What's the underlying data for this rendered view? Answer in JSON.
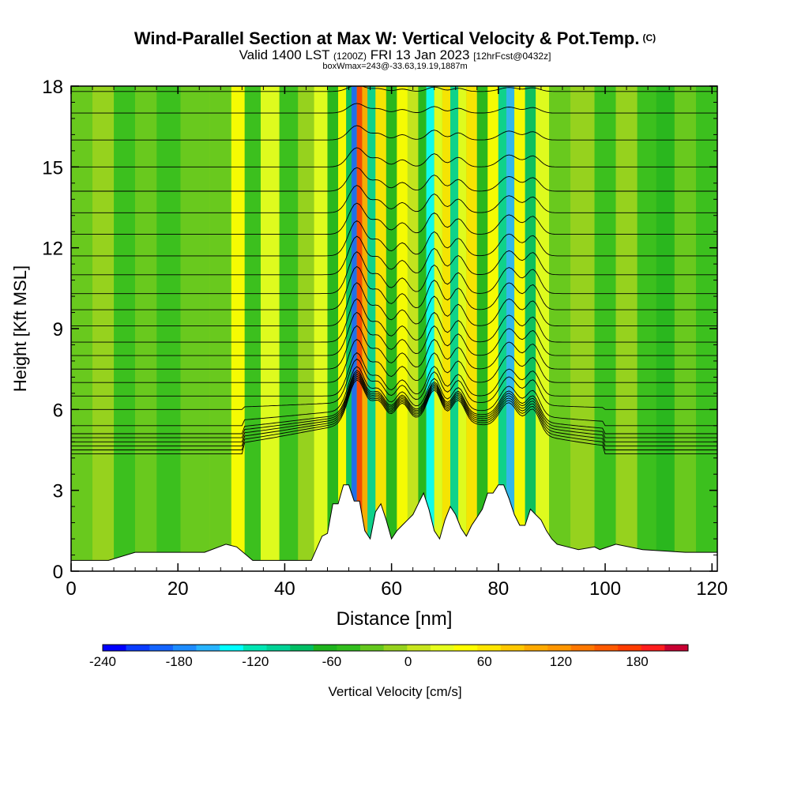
{
  "header": {
    "title": "Wind-Parallel Section at Max W: Vertical Velocity & Pot.Temp.",
    "copyright": "(C)",
    "valid_a": "Valid 1400 LST",
    "valid_b": "(1200Z)",
    "valid_c": "FRI 13 Jan 2023",
    "valid_d": "[12hrFcst@0432z]",
    "box_info": "boxWmax=243@-33.63,19.19,1887m"
  },
  "chart_data": {
    "type": "heatmap",
    "title": "Wind-Parallel Section at Max W: Vertical Velocity & Pot.Temp.",
    "xlabel": "Distance [nm]",
    "ylabel": "Height [Kft MSL]",
    "xlim": [
      0,
      121
    ],
    "ylim": [
      0,
      18
    ],
    "x_ticks": [
      0,
      20,
      40,
      60,
      80,
      100,
      120
    ],
    "y_ticks": [
      0,
      3,
      6,
      9,
      12,
      15,
      18
    ],
    "grid": false,
    "colorbar": {
      "label": "Vertical Velocity [cm/s]",
      "range": [
        -240,
        220
      ],
      "step": 20,
      "tick_values": [
        -240,
        -180,
        -120,
        -60,
        0,
        60,
        120,
        180
      ],
      "colors": [
        "#0000ff",
        "#0a3cff",
        "#1464ff",
        "#1e8cff",
        "#28b4ff",
        "#00ffff",
        "#00e6b4",
        "#00d296",
        "#00be64",
        "#1eb41e",
        "#32be1e",
        "#64c81e",
        "#96d21e",
        "#c8e61e",
        "#e6ff1e",
        "#ffff00",
        "#ffe600",
        "#ffc800",
        "#ffaa00",
        "#ff9600",
        "#ff7800",
        "#ff5a00",
        "#ff3c00",
        "#ff1e1e",
        "#c80032"
      ]
    },
    "terrain": [
      [
        0,
        0.4
      ],
      [
        3,
        0.4
      ],
      [
        7,
        0.4
      ],
      [
        12,
        0.7
      ],
      [
        16,
        0.7
      ],
      [
        25,
        0.7
      ],
      [
        29,
        1.0
      ],
      [
        31,
        0.9
      ],
      [
        34,
        0.4
      ],
      [
        38,
        0.4
      ],
      [
        45,
        0.4
      ],
      [
        47,
        1.3
      ],
      [
        48,
        1.4
      ],
      [
        49,
        2.5
      ],
      [
        50,
        2.5
      ],
      [
        51,
        3.2
      ],
      [
        52,
        3.2
      ],
      [
        53,
        2.6
      ],
      [
        54,
        2.6
      ],
      [
        55,
        1.5
      ],
      [
        56,
        1.2
      ],
      [
        57,
        2.2
      ],
      [
        58,
        2.5
      ],
      [
        59,
        1.9
      ],
      [
        60,
        1.2
      ],
      [
        61,
        1.5
      ],
      [
        62,
        1.7
      ],
      [
        63,
        1.9
      ],
      [
        64,
        2.1
      ],
      [
        65,
        2.5
      ],
      [
        66,
        2.9
      ],
      [
        67,
        2.3
      ],
      [
        68,
        1.5
      ],
      [
        69,
        1.2
      ],
      [
        70,
        1.9
      ],
      [
        71,
        2.4
      ],
      [
        72,
        2.1
      ],
      [
        73,
        1.6
      ],
      [
        74,
        1.3
      ],
      [
        75,
        1.7
      ],
      [
        76,
        2.0
      ],
      [
        77,
        2.3
      ],
      [
        78,
        2.9
      ],
      [
        79,
        2.9
      ],
      [
        80,
        3.2
      ],
      [
        81,
        3.2
      ],
      [
        82,
        2.7
      ],
      [
        83,
        2.1
      ],
      [
        84,
        1.7
      ],
      [
        85,
        1.7
      ],
      [
        86,
        2.3
      ],
      [
        87,
        2.1
      ],
      [
        88,
        1.9
      ],
      [
        89,
        1.5
      ],
      [
        90,
        1.2
      ],
      [
        91,
        1.0
      ],
      [
        93,
        0.9
      ],
      [
        95,
        0.8
      ],
      [
        98,
        0.9
      ],
      [
        99,
        0.8
      ],
      [
        102,
        1.0
      ],
      [
        107,
        0.8
      ],
      [
        115,
        0.7
      ],
      [
        121,
        0.7
      ]
    ],
    "w_columns": [
      {
        "x": 2,
        "w": -20
      },
      {
        "x": 6,
        "w": 0
      },
      {
        "x": 10,
        "w": -30
      },
      {
        "x": 14,
        "w": -10
      },
      {
        "x": 18,
        "w": -30
      },
      {
        "x": 23,
        "w": -20
      },
      {
        "x": 29,
        "w": -10
      },
      {
        "x": 31,
        "w": 60
      },
      {
        "x": 34,
        "w": -40
      },
      {
        "x": 37,
        "w": 40
      },
      {
        "x": 41,
        "w": -30
      },
      {
        "x": 44,
        "w": 10
      },
      {
        "x": 47,
        "w": 50
      },
      {
        "x": 49,
        "w": -60
      },
      {
        "x": 51,
        "w": 60
      },
      {
        "x": 52,
        "w": -80
      },
      {
        "x": 53,
        "w": -200
      },
      {
        "x": 54,
        "w": 200
      },
      {
        "x": 55,
        "w": 120
      },
      {
        "x": 56,
        "w": -100
      },
      {
        "x": 58,
        "w": 80
      },
      {
        "x": 60,
        "w": -60
      },
      {
        "x": 62,
        "w": 70
      },
      {
        "x": 64,
        "w": 30
      },
      {
        "x": 66,
        "w": -60
      },
      {
        "x": 67,
        "w": -130
      },
      {
        "x": 69,
        "w": 40
      },
      {
        "x": 70,
        "w": 90
      },
      {
        "x": 72,
        "w": -100
      },
      {
        "x": 73,
        "w": 40
      },
      {
        "x": 75,
        "w": 80
      },
      {
        "x": 77,
        "w": -60
      },
      {
        "x": 79,
        "w": 60
      },
      {
        "x": 81,
        "w": -90
      },
      {
        "x": 82,
        "w": -150
      },
      {
        "x": 84,
        "w": 60
      },
      {
        "x": 86,
        "w": -70
      },
      {
        "x": 88,
        "w": 40
      },
      {
        "x": 91,
        "w": -20
      },
      {
        "x": 96,
        "w": 10
      },
      {
        "x": 100,
        "w": -40
      },
      {
        "x": 104,
        "w": 0
      },
      {
        "x": 108,
        "w": -30
      },
      {
        "x": 111,
        "w": -50
      },
      {
        "x": 115,
        "w": -20
      },
      {
        "x": 119,
        "w": -30
      }
    ],
    "theta_levels_kft": [
      4.35,
      4.5,
      4.65,
      4.8,
      4.95,
      5.1,
      5.4,
      6.0,
      6.5,
      7.0,
      7.5,
      8.0,
      8.5,
      9.1,
      9.7,
      10.3,
      11.0,
      11.7,
      12.5,
      13.3,
      14.1,
      15.0,
      16.0,
      17.0,
      17.8
    ]
  }
}
